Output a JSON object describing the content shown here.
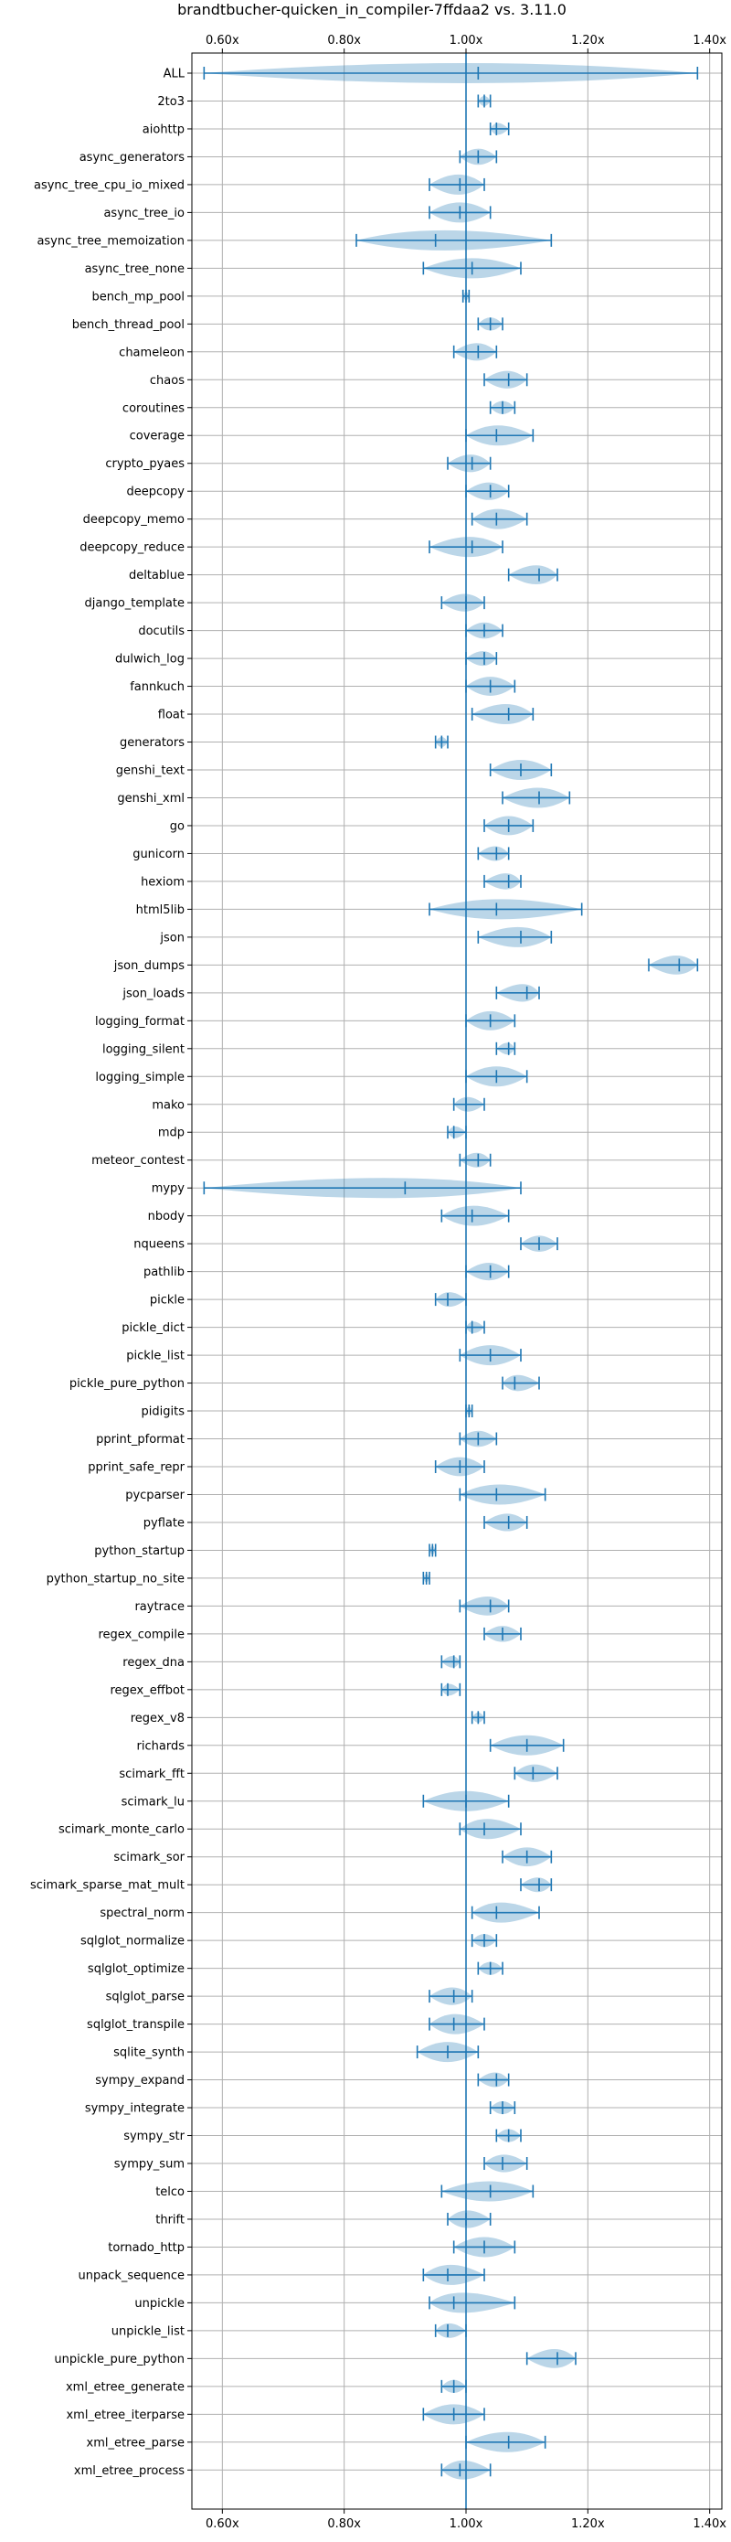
{
  "chart_data": {
    "type": "violin",
    "title": "brandtbucher-quicken_in_compiler-7ffdaa2 vs. 3.11.0",
    "xlabel": "",
    "ylabel": "",
    "xlim": [
      0.55,
      1.42
    ],
    "xticks": [
      0.6,
      0.8,
      1.0,
      1.2,
      1.4
    ],
    "xtick_labels": [
      "0.60x",
      "0.80x",
      "1.00x",
      "1.20x",
      "1.40x"
    ],
    "xticks_position": "top",
    "reference_line": 1.0,
    "grid": true,
    "colors": {
      "violin": "#1f77b4",
      "stroke": "#1f77b4"
    },
    "benchmarks": [
      {
        "name": "ALL",
        "min": 0.57,
        "max": 1.38,
        "median": 1.02
      },
      {
        "name": "2to3",
        "min": 1.02,
        "max": 1.04,
        "median": 1.03
      },
      {
        "name": "aiohttp",
        "min": 1.04,
        "max": 1.07,
        "median": 1.05
      },
      {
        "name": "async_generators",
        "min": 0.99,
        "max": 1.05,
        "median": 1.02
      },
      {
        "name": "async_tree_cpu_io_mixed",
        "min": 0.94,
        "max": 1.03,
        "median": 0.99
      },
      {
        "name": "async_tree_io",
        "min": 0.94,
        "max": 1.04,
        "median": 0.99
      },
      {
        "name": "async_tree_memoization",
        "min": 0.82,
        "max": 1.14,
        "median": 0.95
      },
      {
        "name": "async_tree_none",
        "min": 0.93,
        "max": 1.09,
        "median": 1.01
      },
      {
        "name": "bench_mp_pool",
        "min": 0.995,
        "max": 1.005,
        "median": 1.0
      },
      {
        "name": "bench_thread_pool",
        "min": 1.02,
        "max": 1.06,
        "median": 1.04
      },
      {
        "name": "chameleon",
        "min": 0.98,
        "max": 1.05,
        "median": 1.02
      },
      {
        "name": "chaos",
        "min": 1.03,
        "max": 1.1,
        "median": 1.07
      },
      {
        "name": "coroutines",
        "min": 1.04,
        "max": 1.08,
        "median": 1.06
      },
      {
        "name": "coverage",
        "min": 1.0,
        "max": 1.11,
        "median": 1.05
      },
      {
        "name": "crypto_pyaes",
        "min": 0.97,
        "max": 1.04,
        "median": 1.01
      },
      {
        "name": "deepcopy",
        "min": 1.0,
        "max": 1.07,
        "median": 1.04
      },
      {
        "name": "deepcopy_memo",
        "min": 1.01,
        "max": 1.1,
        "median": 1.05
      },
      {
        "name": "deepcopy_reduce",
        "min": 0.94,
        "max": 1.06,
        "median": 1.01
      },
      {
        "name": "deltablue",
        "min": 1.07,
        "max": 1.15,
        "median": 1.12
      },
      {
        "name": "django_template",
        "min": 0.96,
        "max": 1.03,
        "median": 1.0
      },
      {
        "name": "docutils",
        "min": 1.0,
        "max": 1.06,
        "median": 1.03
      },
      {
        "name": "dulwich_log",
        "min": 1.0,
        "max": 1.05,
        "median": 1.03
      },
      {
        "name": "fannkuch",
        "min": 1.0,
        "max": 1.08,
        "median": 1.04
      },
      {
        "name": "float",
        "min": 1.01,
        "max": 1.11,
        "median": 1.07
      },
      {
        "name": "generators",
        "min": 0.95,
        "max": 0.97,
        "median": 0.96
      },
      {
        "name": "genshi_text",
        "min": 1.04,
        "max": 1.14,
        "median": 1.09
      },
      {
        "name": "genshi_xml",
        "min": 1.06,
        "max": 1.17,
        "median": 1.12
      },
      {
        "name": "go",
        "min": 1.03,
        "max": 1.11,
        "median": 1.07
      },
      {
        "name": "gunicorn",
        "min": 1.02,
        "max": 1.07,
        "median": 1.05
      },
      {
        "name": "hexiom",
        "min": 1.03,
        "max": 1.09,
        "median": 1.07
      },
      {
        "name": "html5lib",
        "min": 0.94,
        "max": 1.19,
        "median": 1.05
      },
      {
        "name": "json",
        "min": 1.02,
        "max": 1.14,
        "median": 1.09
      },
      {
        "name": "json_dumps",
        "min": 1.3,
        "max": 1.38,
        "median": 1.35
      },
      {
        "name": "json_loads",
        "min": 1.05,
        "max": 1.12,
        "median": 1.1
      },
      {
        "name": "logging_format",
        "min": 1.0,
        "max": 1.08,
        "median": 1.04
      },
      {
        "name": "logging_silent",
        "min": 1.05,
        "max": 1.08,
        "median": 1.07
      },
      {
        "name": "logging_simple",
        "min": 1.0,
        "max": 1.1,
        "median": 1.05
      },
      {
        "name": "mako",
        "min": 0.98,
        "max": 1.03,
        "median": 1.0
      },
      {
        "name": "mdp",
        "min": 0.97,
        "max": 1.0,
        "median": 0.98
      },
      {
        "name": "meteor_contest",
        "min": 0.99,
        "max": 1.04,
        "median": 1.02
      },
      {
        "name": "mypy",
        "min": 0.57,
        "max": 1.09,
        "median": 0.9
      },
      {
        "name": "nbody",
        "min": 0.96,
        "max": 1.07,
        "median": 1.01
      },
      {
        "name": "nqueens",
        "min": 1.09,
        "max": 1.15,
        "median": 1.12
      },
      {
        "name": "pathlib",
        "min": 1.0,
        "max": 1.07,
        "median": 1.04
      },
      {
        "name": "pickle",
        "min": 0.95,
        "max": 1.0,
        "median": 0.97
      },
      {
        "name": "pickle_dict",
        "min": 1.0,
        "max": 1.03,
        "median": 1.01
      },
      {
        "name": "pickle_list",
        "min": 0.99,
        "max": 1.09,
        "median": 1.04
      },
      {
        "name": "pickle_pure_python",
        "min": 1.06,
        "max": 1.12,
        "median": 1.08
      },
      {
        "name": "pidigits",
        "min": 1.0,
        "max": 1.01,
        "median": 1.005
      },
      {
        "name": "pprint_pformat",
        "min": 0.99,
        "max": 1.05,
        "median": 1.02
      },
      {
        "name": "pprint_safe_repr",
        "min": 0.95,
        "max": 1.03,
        "median": 0.99
      },
      {
        "name": "pycparser",
        "min": 0.99,
        "max": 1.13,
        "median": 1.05
      },
      {
        "name": "pyflate",
        "min": 1.03,
        "max": 1.1,
        "median": 1.07
      },
      {
        "name": "python_startup",
        "min": 0.94,
        "max": 0.95,
        "median": 0.945
      },
      {
        "name": "python_startup_no_site",
        "min": 0.93,
        "max": 0.94,
        "median": 0.935
      },
      {
        "name": "raytrace",
        "min": 0.99,
        "max": 1.07,
        "median": 1.04
      },
      {
        "name": "regex_compile",
        "min": 1.03,
        "max": 1.09,
        "median": 1.06
      },
      {
        "name": "regex_dna",
        "min": 0.96,
        "max": 0.99,
        "median": 0.98
      },
      {
        "name": "regex_effbot",
        "min": 0.96,
        "max": 0.99,
        "median": 0.97
      },
      {
        "name": "regex_v8",
        "min": 1.01,
        "max": 1.03,
        "median": 1.02
      },
      {
        "name": "richards",
        "min": 1.04,
        "max": 1.16,
        "median": 1.1
      },
      {
        "name": "scimark_fft",
        "min": 1.08,
        "max": 1.15,
        "median": 1.11
      },
      {
        "name": "scimark_lu",
        "min": 0.93,
        "max": 1.07,
        "median": 1.0
      },
      {
        "name": "scimark_monte_carlo",
        "min": 0.99,
        "max": 1.09,
        "median": 1.03
      },
      {
        "name": "scimark_sor",
        "min": 1.06,
        "max": 1.14,
        "median": 1.1
      },
      {
        "name": "scimark_sparse_mat_mult",
        "min": 1.09,
        "max": 1.14,
        "median": 1.12
      },
      {
        "name": "spectral_norm",
        "min": 1.01,
        "max": 1.12,
        "median": 1.05
      },
      {
        "name": "sqlglot_normalize",
        "min": 1.01,
        "max": 1.05,
        "median": 1.03
      },
      {
        "name": "sqlglot_optimize",
        "min": 1.02,
        "max": 1.06,
        "median": 1.04
      },
      {
        "name": "sqlglot_parse",
        "min": 0.94,
        "max": 1.01,
        "median": 0.98
      },
      {
        "name": "sqlglot_transpile",
        "min": 0.94,
        "max": 1.03,
        "median": 0.98
      },
      {
        "name": "sqlite_synth",
        "min": 0.92,
        "max": 1.02,
        "median": 0.97
      },
      {
        "name": "sympy_expand",
        "min": 1.02,
        "max": 1.07,
        "median": 1.05
      },
      {
        "name": "sympy_integrate",
        "min": 1.04,
        "max": 1.08,
        "median": 1.06
      },
      {
        "name": "sympy_str",
        "min": 1.05,
        "max": 1.09,
        "median": 1.07
      },
      {
        "name": "sympy_sum",
        "min": 1.03,
        "max": 1.1,
        "median": 1.06
      },
      {
        "name": "telco",
        "min": 0.96,
        "max": 1.11,
        "median": 1.04
      },
      {
        "name": "thrift",
        "min": 0.97,
        "max": 1.04,
        "median": 1.0
      },
      {
        "name": "tornado_http",
        "min": 0.98,
        "max": 1.08,
        "median": 1.03
      },
      {
        "name": "unpack_sequence",
        "min": 0.93,
        "max": 1.03,
        "median": 0.97
      },
      {
        "name": "unpickle",
        "min": 0.94,
        "max": 1.08,
        "median": 0.98
      },
      {
        "name": "unpickle_list",
        "min": 0.95,
        "max": 1.0,
        "median": 0.97
      },
      {
        "name": "unpickle_pure_python",
        "min": 1.1,
        "max": 1.18,
        "median": 1.15
      },
      {
        "name": "xml_etree_generate",
        "min": 0.96,
        "max": 1.0,
        "median": 0.98
      },
      {
        "name": "xml_etree_iterparse",
        "min": 0.93,
        "max": 1.03,
        "median": 0.98
      },
      {
        "name": "xml_etree_parse",
        "min": 1.0,
        "max": 1.13,
        "median": 1.07
      },
      {
        "name": "xml_etree_process",
        "min": 0.96,
        "max": 1.04,
        "median": 0.99
      }
    ]
  }
}
